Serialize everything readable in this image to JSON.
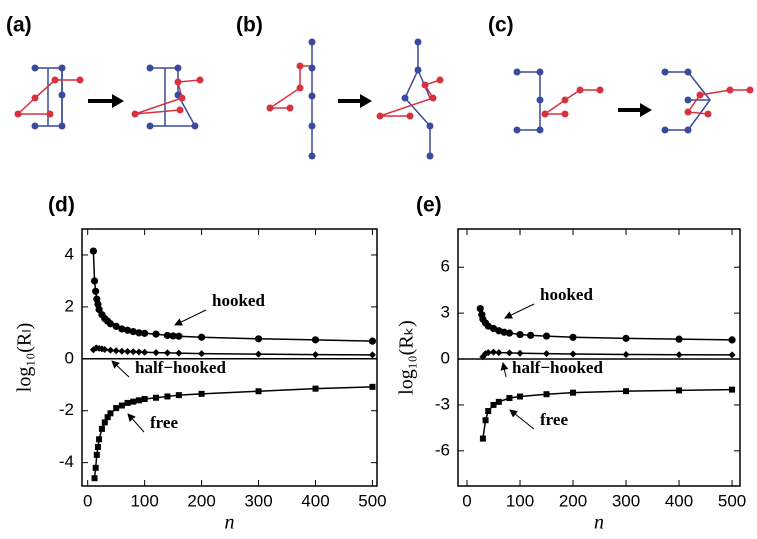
{
  "panel_labels": [
    "(a)",
    "(b)",
    "(c)"
  ],
  "chart_data": [
    {
      "type": "line",
      "label": "(d)",
      "x_label": "n",
      "y_label": "log₁₀(Rₗ)",
      "xlim": [
        -10,
        508
      ],
      "ylim": [
        -4.9,
        5
      ],
      "xticks": [
        0,
        100,
        200,
        300,
        400,
        500
      ],
      "yticks": [
        -4,
        -2,
        0,
        2,
        4
      ],
      "series": [
        {
          "name": "hooked",
          "color": "#000000",
          "marker": "circle",
          "x": [
            10,
            12,
            14,
            16,
            18,
            20,
            25,
            30,
            35,
            40,
            50,
            60,
            70,
            80,
            90,
            100,
            120,
            140,
            150,
            160,
            200,
            300,
            400,
            500
          ],
          "values": [
            4.15,
            3.0,
            2.6,
            2.3,
            2.1,
            1.9,
            1.7,
            1.55,
            1.45,
            1.35,
            1.25,
            1.15,
            1.1,
            1.05,
            1.0,
            0.98,
            0.95,
            0.9,
            0.88,
            0.87,
            0.83,
            0.77,
            0.73,
            0.68
          ]
        },
        {
          "name": "half−hooked",
          "color": "#000000",
          "marker": "diamond",
          "x": [
            10,
            15,
            20,
            25,
            30,
            40,
            50,
            60,
            70,
            80,
            90,
            100,
            120,
            140,
            160,
            200,
            300,
            400,
            500
          ],
          "values": [
            0.35,
            0.42,
            0.4,
            0.38,
            0.36,
            0.33,
            0.31,
            0.29,
            0.28,
            0.27,
            0.26,
            0.25,
            0.24,
            0.23,
            0.22,
            0.2,
            0.18,
            0.16,
            0.15
          ]
        },
        {
          "name": "free",
          "color": "#000000",
          "marker": "square",
          "x": [
            12,
            14,
            16,
            18,
            20,
            25,
            30,
            35,
            40,
            50,
            60,
            70,
            80,
            90,
            100,
            120,
            140,
            160,
            200,
            300,
            400,
            500
          ],
          "values": [
            -4.6,
            -4.2,
            -3.7,
            -3.4,
            -3.1,
            -2.7,
            -2.45,
            -2.25,
            -2.1,
            -1.9,
            -1.8,
            -1.7,
            -1.65,
            -1.6,
            -1.55,
            -1.5,
            -1.45,
            -1.4,
            -1.35,
            -1.25,
            -1.15,
            -1.08
          ]
        }
      ]
    },
    {
      "type": "line",
      "label": "(e)",
      "x_label": "n",
      "y_label": "log₁₀(Rₖ)",
      "xlim": [
        -17,
        515
      ],
      "ylim": [
        -8.3,
        8.5
      ],
      "xticks": [
        0,
        100,
        200,
        300,
        400,
        500
      ],
      "yticks": [
        -6,
        -3,
        0,
        3,
        6
      ],
      "series": [
        {
          "name": "hooked",
          "color": "#000000",
          "marker": "circle",
          "x": [
            25,
            28,
            30,
            35,
            40,
            50,
            60,
            70,
            80,
            100,
            120,
            150,
            200,
            300,
            400,
            500
          ],
          "values": [
            3.3,
            2.9,
            2.6,
            2.35,
            2.15,
            2.0,
            1.85,
            1.75,
            1.7,
            1.6,
            1.55,
            1.5,
            1.42,
            1.35,
            1.3,
            1.25
          ]
        },
        {
          "name": "half−hooked",
          "color": "#000000",
          "marker": "diamond",
          "x": [
            30,
            35,
            40,
            50,
            60,
            80,
            100,
            150,
            200,
            300,
            400,
            500
          ],
          "values": [
            0.15,
            0.35,
            0.42,
            0.45,
            0.42,
            0.4,
            0.38,
            0.35,
            0.33,
            0.3,
            0.28,
            0.27
          ]
        },
        {
          "name": "free",
          "color": "#000000",
          "marker": "square",
          "x": [
            30,
            35,
            40,
            50,
            60,
            80,
            100,
            150,
            200,
            300,
            400,
            500
          ],
          "values": [
            -5.2,
            -4.0,
            -3.4,
            -3.0,
            -2.8,
            -2.55,
            -2.45,
            -2.3,
            -2.2,
            -2.1,
            -2.05,
            -2.0
          ]
        }
      ]
    }
  ]
}
